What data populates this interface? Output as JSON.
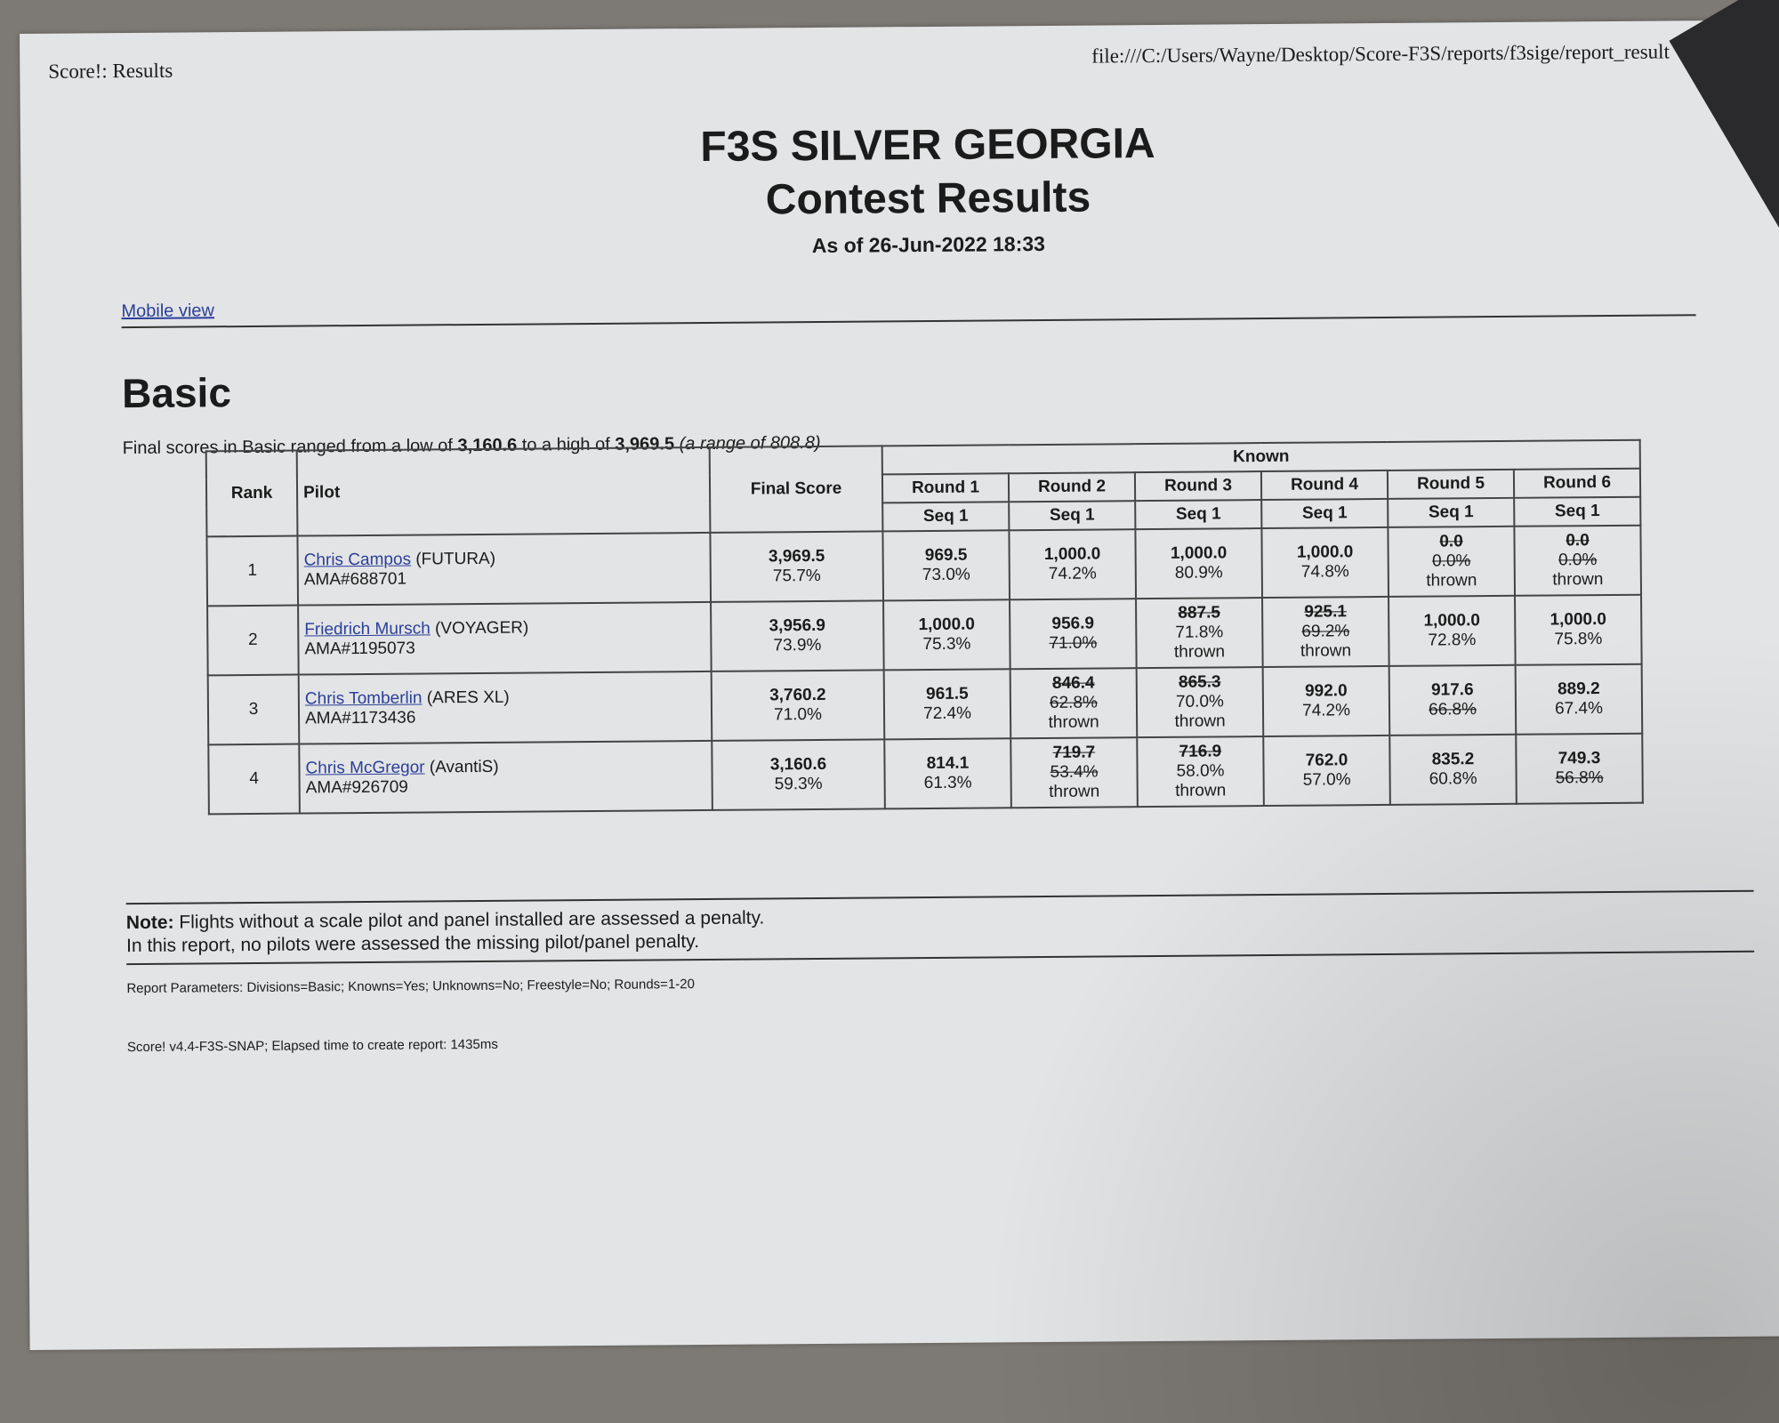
{
  "header": {
    "left": "Score!: Results",
    "url": "file:///C:/Users/Wayne/Desktop/Score-F3S/reports/f3sige/report_result"
  },
  "title_line1": "F3S SILVER GEORGIA",
  "title_line2": "Contest Results",
  "as_of": "As of 26-Jun-2022 18:33",
  "mobile_view_link": "Mobile view",
  "section_title": "Basic",
  "summary": {
    "prefix": "Final scores in Basic ranged from a low of ",
    "low": "3,160.6",
    "middle": " to a high of ",
    "high": "3,969.5",
    "range": "(a range of 808.8)"
  },
  "table": {
    "headers": {
      "rank": "Rank",
      "pilot": "Pilot",
      "final": "Final Score",
      "group": "Known"
    },
    "rounds": [
      {
        "label": "Round 1",
        "seq": "Seq 1"
      },
      {
        "label": "Round 2",
        "seq": "Seq 1"
      },
      {
        "label": "Round 3",
        "seq": "Seq 1"
      },
      {
        "label": "Round 4",
        "seq": "Seq 1"
      },
      {
        "label": "Round 5",
        "seq": "Seq 1"
      },
      {
        "label": "Round 6",
        "seq": "Seq 1"
      }
    ],
    "rows": [
      {
        "rank": "1",
        "name": "Chris Campos",
        "plane": "(FUTURA)",
        "ama": "AMA#688701",
        "final": "3,969.5",
        "final_pct": "75.7%",
        "rounds": [
          {
            "score": "969.5",
            "pct": "73.0%"
          },
          {
            "score": "1,000.0",
            "pct": "74.2%"
          },
          {
            "score": "1,000.0",
            "pct": "80.9%"
          },
          {
            "score": "1,000.0",
            "pct": "74.8%"
          },
          {
            "score": "0.0",
            "pct": "0.0%",
            "score_struck": true,
            "pct_struck": true,
            "thrown": "thrown"
          },
          {
            "score": "0.0",
            "pct": "0.0%",
            "score_struck": true,
            "pct_struck": true,
            "thrown": "thrown"
          }
        ]
      },
      {
        "rank": "2",
        "name": "Friedrich Mursch",
        "plane": "(VOYAGER)",
        "ama": "AMA#1195073",
        "final": "3,956.9",
        "final_pct": "73.9%",
        "rounds": [
          {
            "score": "1,000.0",
            "pct": "75.3%"
          },
          {
            "score": "956.9",
            "pct": "71.0%",
            "pct_struck": true
          },
          {
            "score": "887.5",
            "pct": "71.8%",
            "score_struck": true,
            "thrown": "thrown"
          },
          {
            "score": "925.1",
            "pct": "69.2%",
            "score_struck": true,
            "pct_struck": true,
            "thrown": "thrown"
          },
          {
            "score": "1,000.0",
            "pct": "72.8%"
          },
          {
            "score": "1,000.0",
            "pct": "75.8%"
          }
        ]
      },
      {
        "rank": "3",
        "name": "Chris Tomberlin",
        "plane": "(ARES XL)",
        "ama": "AMA#1173436",
        "final": "3,760.2",
        "final_pct": "71.0%",
        "rounds": [
          {
            "score": "961.5",
            "pct": "72.4%"
          },
          {
            "score": "846.4",
            "pct": "62.8%",
            "score_struck": true,
            "pct_struck": true,
            "thrown": "thrown"
          },
          {
            "score": "865.3",
            "pct": "70.0%",
            "score_struck": true,
            "thrown": "thrown"
          },
          {
            "score": "992.0",
            "pct": "74.2%"
          },
          {
            "score": "917.6",
            "pct": "66.8%",
            "pct_struck": true
          },
          {
            "score": "889.2",
            "pct": "67.4%"
          }
        ]
      },
      {
        "rank": "4",
        "name": "Chris McGregor",
        "plane": "(AvantiS)",
        "ama": "AMA#926709",
        "final": "3,160.6",
        "final_pct": "59.3%",
        "rounds": [
          {
            "score": "814.1",
            "pct": "61.3%"
          },
          {
            "score": "719.7",
            "pct": "53.4%",
            "score_struck": true,
            "pct_struck": true,
            "thrown": "thrown"
          },
          {
            "score": "716.9",
            "pct": "58.0%",
            "score_struck": true,
            "thrown": "thrown"
          },
          {
            "score": "762.0",
            "pct": "57.0%"
          },
          {
            "score": "835.2",
            "pct": "60.8%"
          },
          {
            "score": "749.3",
            "pct": "56.8%",
            "pct_struck": true
          }
        ]
      }
    ]
  },
  "note": {
    "label": "Note:",
    "line1": " Flights without a scale pilot and panel installed are assessed a penalty.",
    "line2": "In this report, no pilots were assessed the missing pilot/panel penalty."
  },
  "report_parameters": "Report Parameters: Divisions=Basic; Knowns=Yes; Unknowns=No; Freestyle=No; Rounds=1-20",
  "version": "Score! v4.4-F3S-SNAP; Elapsed time to create report: 1435ms"
}
